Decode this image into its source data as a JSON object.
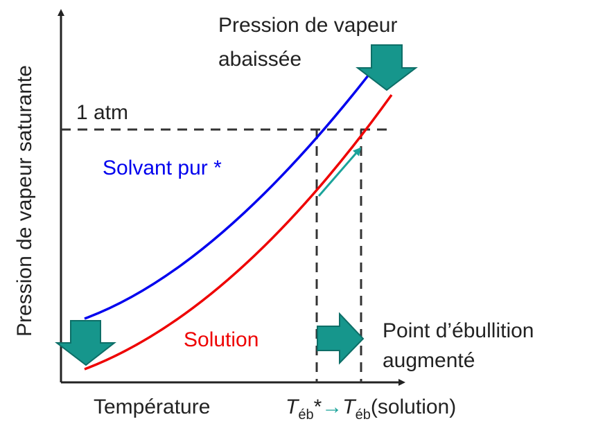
{
  "axes": {
    "y_label": "Pression de vapeur saturante",
    "x_label": "Température"
  },
  "reference": {
    "label": "1 atm"
  },
  "curves": [
    {
      "label": "Solvant pur *"
    },
    {
      "label": "Solution"
    }
  ],
  "annotations": {
    "pressure": [
      "Pression de vapeur",
      "abaissée"
    ],
    "boiling": [
      "Point d’ébullition",
      "augmenté"
    ]
  },
  "x_markers": {
    "pure": {
      "symbol": "T",
      "subscript": "éb",
      "suffix": "*"
    },
    "arrow": "→",
    "solution": {
      "symbol": "T",
      "subscript": "éb",
      "suffix": "(solution)"
    }
  }
}
